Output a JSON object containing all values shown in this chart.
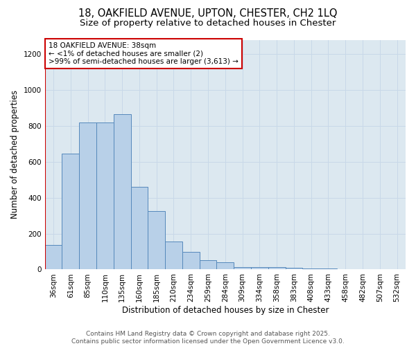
{
  "title_line1": "18, OAKFIELD AVENUE, UPTON, CHESTER, CH2 1LQ",
  "title_line2": "Size of property relative to detached houses in Chester",
  "xlabel": "Distribution of detached houses by size in Chester",
  "ylabel": "Number of detached properties",
  "categories": [
    "36sqm",
    "61sqm",
    "85sqm",
    "110sqm",
    "135sqm",
    "160sqm",
    "185sqm",
    "210sqm",
    "234sqm",
    "259sqm",
    "284sqm",
    "309sqm",
    "334sqm",
    "358sqm",
    "383sqm",
    "408sqm",
    "433sqm",
    "458sqm",
    "482sqm",
    "507sqm",
    "532sqm"
  ],
  "values": [
    135,
    645,
    820,
    820,
    865,
    460,
    325,
    155,
    100,
    50,
    40,
    15,
    15,
    15,
    10,
    5,
    5,
    3,
    1,
    1,
    1
  ],
  "bar_color": "#b8d0e8",
  "bar_edge_color": "#5588bb",
  "annotation_box_text": "18 OAKFIELD AVENUE: 38sqm\n← <1% of detached houses are smaller (2)\n>99% of semi-detached houses are larger (3,613) →",
  "annotation_box_color": "#ffffff",
  "annotation_box_edge_color": "#cc0000",
  "vline_color": "#cc0000",
  "ylim": [
    0,
    1280
  ],
  "yticks": [
    0,
    200,
    400,
    600,
    800,
    1000,
    1200
  ],
  "grid_color": "#c8d8e8",
  "background_color": "#dce8f0",
  "footer_text": "Contains HM Land Registry data © Crown copyright and database right 2025.\nContains public sector information licensed under the Open Government Licence v3.0.",
  "title_fontsize": 10.5,
  "subtitle_fontsize": 9.5,
  "axis_label_fontsize": 8.5,
  "tick_fontsize": 7.5,
  "annotation_fontsize": 7.5,
  "footer_fontsize": 6.5
}
